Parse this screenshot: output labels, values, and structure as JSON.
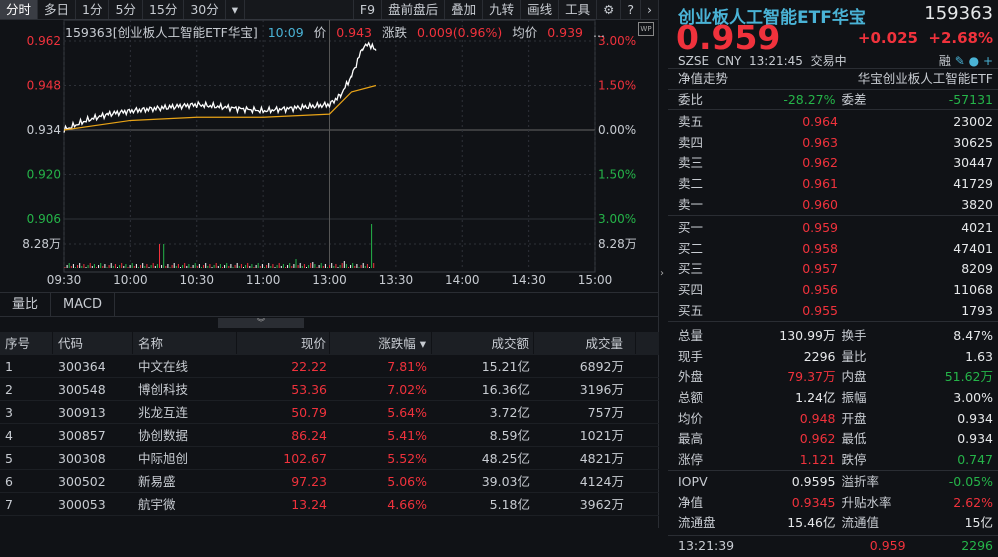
{
  "toolbar": {
    "periods": [
      "分时",
      "多日",
      "1分",
      "5分",
      "15分",
      "30分"
    ],
    "more": "▾",
    "tools": [
      "F9",
      "盘前盘后",
      "叠加",
      "九转",
      "画线",
      "工具"
    ],
    "gear_icon": "⚙",
    "help_icon": "?",
    "next_icon": "›"
  },
  "chart_info": {
    "title": "159363[创业板人工智能ETF华宝]",
    "time": "10:09",
    "price_label": "价",
    "price": "0.943",
    "change_label": "涨跌",
    "change": "0.009(0.96%)",
    "avg_label": "均价",
    "avg": "0.939",
    "more": "...",
    "wp": "WP"
  },
  "chart_data": {
    "type": "line",
    "x_ticks": [
      "09:30",
      "10:00",
      "10:30",
      "11:00",
      "13:00",
      "13:30",
      "14:00",
      "14:30",
      "15:00"
    ],
    "y_left_ticks": [
      "0.962",
      "0.948",
      "0.934",
      "0.920",
      "0.906"
    ],
    "y_right_ticks": [
      "3.00%",
      "1.50%",
      "0.00%",
      "1.50%",
      "3.00%"
    ],
    "ylim": [
      0.906,
      0.962
    ],
    "volume_label": "8.28万",
    "series": [
      {
        "time": [
          "09:30",
          "09:40",
          "09:50",
          "10:00",
          "10:15",
          "10:30",
          "10:45",
          "11:00",
          "11:15",
          "11:30",
          "13:05",
          "13:10",
          "13:15",
          "13:18",
          "13:21"
        ],
        "values": [
          0.934,
          0.937,
          0.939,
          0.94,
          0.941,
          0.942,
          0.941,
          0.94,
          0.941,
          0.942,
          0.945,
          0.951,
          0.96,
          0.961,
          0.959
        ]
      },
      {
        "time": [
          "09:30",
          "10:00",
          "10:30",
          "11:00",
          "11:30",
          "13:10",
          "13:21"
        ],
        "values": [
          0.934,
          0.937,
          0.938,
          0.938,
          0.939,
          0.946,
          0.948
        ]
      }
    ],
    "colors": {
      "price": "#ffffff",
      "avg": "#e8a317",
      "up": "#f0323c",
      "down": "#25b449"
    }
  },
  "subtabs": [
    "量比",
    "MACD"
  ],
  "table": {
    "headers": [
      "序号",
      "代码",
      "名称",
      "现价",
      "涨跌幅 ▾",
      "成交额",
      "成交量"
    ],
    "rows": [
      [
        "1",
        "300364",
        "中文在线",
        "22.22",
        "7.81%",
        "15.21亿",
        "6892万"
      ],
      [
        "2",
        "300548",
        "博创科技",
        "53.36",
        "7.02%",
        "16.36亿",
        "3196万"
      ],
      [
        "3",
        "300913",
        "兆龙互连",
        "50.79",
        "5.64%",
        "3.72亿",
        "757万"
      ],
      [
        "4",
        "300857",
        "协创数据",
        "86.24",
        "5.41%",
        "8.59亿",
        "1021万"
      ],
      [
        "5",
        "300308",
        "中际旭创",
        "102.67",
        "5.52%",
        "48.25亿",
        "4821万"
      ],
      [
        "6",
        "300502",
        "新易盛",
        "97.23",
        "5.06%",
        "39.03亿",
        "4124万"
      ],
      [
        "7",
        "300053",
        "航宇微",
        "13.24",
        "4.66%",
        "5.18亿",
        "3962万"
      ]
    ]
  },
  "quote": {
    "name": "创业板人工智能ETF华宝",
    "code": "159363",
    "price": "0.959",
    "change": "+0.025",
    "pct": "+2.68%",
    "exchange": "SZSE",
    "currency": "CNY",
    "time": "13:21:45",
    "status": "交易中",
    "rong": "融",
    "nav_trend": "净值走势",
    "full_name": "华宝创业板人工智能ETF",
    "wei_bi_label": "委比",
    "wei_bi": "-28.27%",
    "wei_cha_label": "委差",
    "wei_cha": "-57131"
  },
  "asks": [
    [
      "卖五",
      "0.964",
      "23002"
    ],
    [
      "卖四",
      "0.963",
      "30625"
    ],
    [
      "卖三",
      "0.962",
      "30447"
    ],
    [
      "卖二",
      "0.961",
      "41729"
    ],
    [
      "卖一",
      "0.960",
      "3820"
    ]
  ],
  "bids": [
    [
      "买一",
      "0.959",
      "4021"
    ],
    [
      "买二",
      "0.958",
      "47401"
    ],
    [
      "买三",
      "0.957",
      "8209"
    ],
    [
      "买四",
      "0.956",
      "11068"
    ],
    [
      "买五",
      "0.955",
      "1793"
    ]
  ],
  "stats": [
    [
      [
        "总量",
        "130.99万",
        "white"
      ],
      [
        "换手",
        "8.47%",
        "white"
      ]
    ],
    [
      [
        "现手",
        "2296",
        "white"
      ],
      [
        "量比",
        "1.63",
        "white"
      ]
    ],
    [
      [
        "外盘",
        "79.37万",
        "red"
      ],
      [
        "内盘",
        "51.62万",
        "green"
      ]
    ],
    [
      [
        "总额",
        "1.24亿",
        "white"
      ],
      [
        "振幅",
        "3.00%",
        "white"
      ]
    ],
    [
      [
        "均价",
        "0.948",
        "red"
      ],
      [
        "开盘",
        "0.934",
        "white"
      ]
    ],
    [
      [
        "最高",
        "0.962",
        "red"
      ],
      [
        "最低",
        "0.934",
        "white"
      ]
    ],
    [
      [
        "涨停",
        "1.121",
        "red"
      ],
      [
        "跌停",
        "0.747",
        "green"
      ]
    ]
  ],
  "etf": [
    [
      [
        "IOPV",
        "0.9595",
        "white"
      ],
      [
        "溢折率",
        "-0.05%",
        "green"
      ]
    ],
    [
      [
        "净值",
        "0.9345",
        "red"
      ],
      [
        "升贴水率",
        "2.62%",
        "red"
      ]
    ],
    [
      [
        "流通盘",
        "15.46亿",
        "white"
      ],
      [
        "流通值",
        "15亿",
        "white"
      ]
    ]
  ],
  "tick": {
    "time": "13:21:39",
    "price": "0.959",
    "volume": "2296"
  }
}
